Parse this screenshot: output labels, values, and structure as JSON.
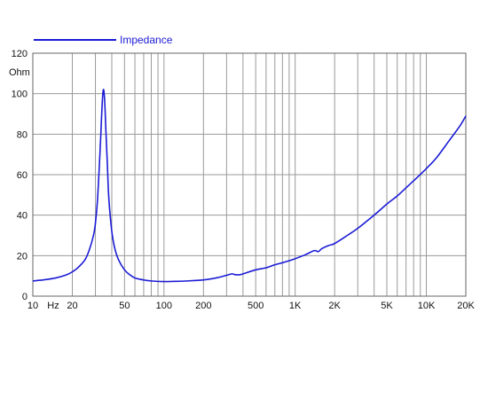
{
  "chart_data": {
    "type": "line",
    "x_scale": "log",
    "xlim": [
      10,
      20000
    ],
    "ylim": [
      0,
      120
    ],
    "y_unit_label": "Ohm",
    "x_unit_label": "Hz",
    "grid": true,
    "legend_position": "top-left",
    "y_ticks": [
      {
        "value": 0,
        "label": "0"
      },
      {
        "value": 20,
        "label": "20"
      },
      {
        "value": 40,
        "label": "40"
      },
      {
        "value": 60,
        "label": "60"
      },
      {
        "value": 80,
        "label": "80"
      },
      {
        "value": 100,
        "label": "100"
      },
      {
        "value": 120,
        "label": "120"
      }
    ],
    "x_ticks": [
      {
        "value": 10,
        "label": "10"
      },
      {
        "value": 20,
        "label": "20"
      },
      {
        "value": 50,
        "label": "50"
      },
      {
        "value": 100,
        "label": "100"
      },
      {
        "value": 200,
        "label": "200"
      },
      {
        "value": 500,
        "label": "500"
      },
      {
        "value": 1000,
        "label": "1K"
      },
      {
        "value": 2000,
        "label": "2K"
      },
      {
        "value": 5000,
        "label": "5K"
      },
      {
        "value": 10000,
        "label": "10K"
      },
      {
        "value": 20000,
        "label": "20K"
      }
    ],
    "x_grid": [
      10,
      20,
      30,
      40,
      50,
      60,
      70,
      80,
      90,
      100,
      200,
      300,
      400,
      500,
      600,
      700,
      800,
      900,
      1000,
      2000,
      3000,
      4000,
      5000,
      6000,
      7000,
      8000,
      9000,
      10000,
      20000
    ],
    "series": [
      {
        "name": "Impedance",
        "color": "#1b1bd6",
        "x": [
          10,
          12,
          15,
          18,
          20,
          22,
          25,
          27,
          29,
          30,
          31,
          32,
          33,
          33.5,
          34,
          34.5,
          35,
          35.5,
          36,
          37,
          38,
          40,
          42,
          45,
          50,
          55,
          60,
          70,
          80,
          100,
          120,
          150,
          200,
          250,
          300,
          330,
          350,
          380,
          400,
          500,
          600,
          700,
          800,
          900,
          1000,
          1200,
          1400,
          1500,
          1600,
          1800,
          2000,
          2500,
          3000,
          4000,
          5000,
          6000,
          7000,
          8000,
          10000,
          12000,
          15000,
          18000,
          20000
        ],
        "y": [
          7.5,
          8,
          9,
          10.5,
          12,
          14,
          18,
          23,
          30,
          36,
          46,
          62,
          80,
          90,
          98,
          102,
          100,
          93,
          83,
          65,
          48,
          32,
          24,
          18,
          13,
          10.5,
          9,
          8,
          7.5,
          7.2,
          7.3,
          7.5,
          8,
          9,
          10.3,
          11,
          10.6,
          10.6,
          11,
          13,
          14,
          15.5,
          16.5,
          17.5,
          18.5,
          20.5,
          22.5,
          22,
          23.5,
          25,
          26,
          30,
          33.5,
          40,
          45.5,
          49.5,
          53.5,
          57,
          63,
          68.5,
          77,
          84,
          89
        ]
      }
    ]
  }
}
